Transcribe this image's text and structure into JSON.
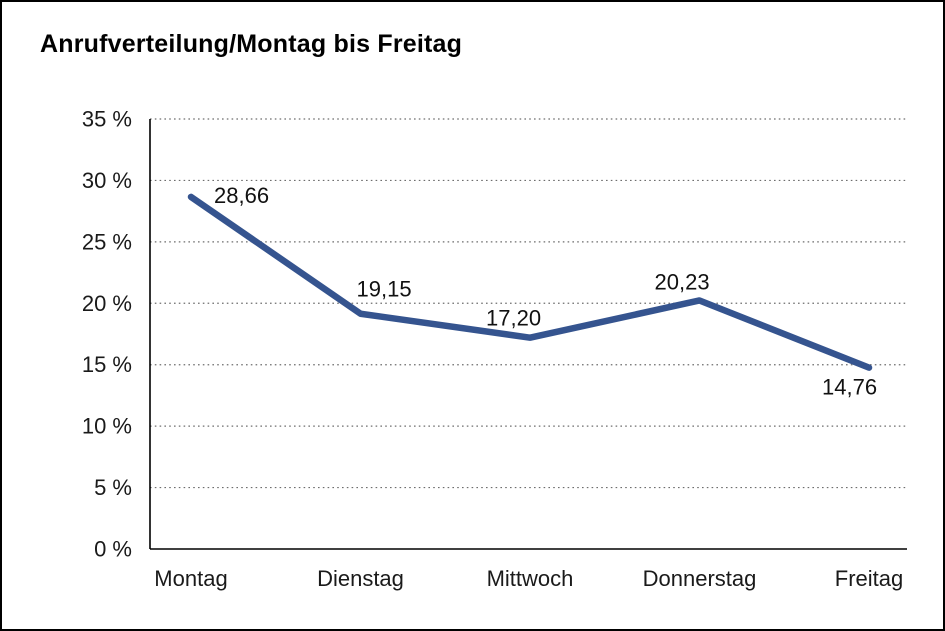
{
  "chart_data": {
    "type": "line",
    "title": "Anrufverteilung/Montag bis Freitag",
    "categories": [
      "Montag",
      "Dienstag",
      "Mittwoch",
      "Donnerstag",
      "Freitag"
    ],
    "values": [
      28.66,
      19.15,
      17.2,
      20.23,
      14.76
    ],
    "value_labels": [
      "28,66",
      "19,15",
      "17,20",
      "20,23",
      "14,76"
    ],
    "series_name": "Anrufverteilung",
    "xlabel": "",
    "ylabel": "",
    "ylim": [
      0,
      35
    ],
    "ytick_step": 5,
    "ytick_labels": [
      "0 %",
      "5 %",
      "10 %",
      "15 %",
      "20 %",
      "25 %",
      "30 %",
      "35 %"
    ],
    "grid": "dotted-horizontal",
    "legend": "none",
    "line_color": "#35548f",
    "axis_color": "#000000",
    "grid_color": "#6e6e6e",
    "text_color": "#1a1a1a"
  }
}
